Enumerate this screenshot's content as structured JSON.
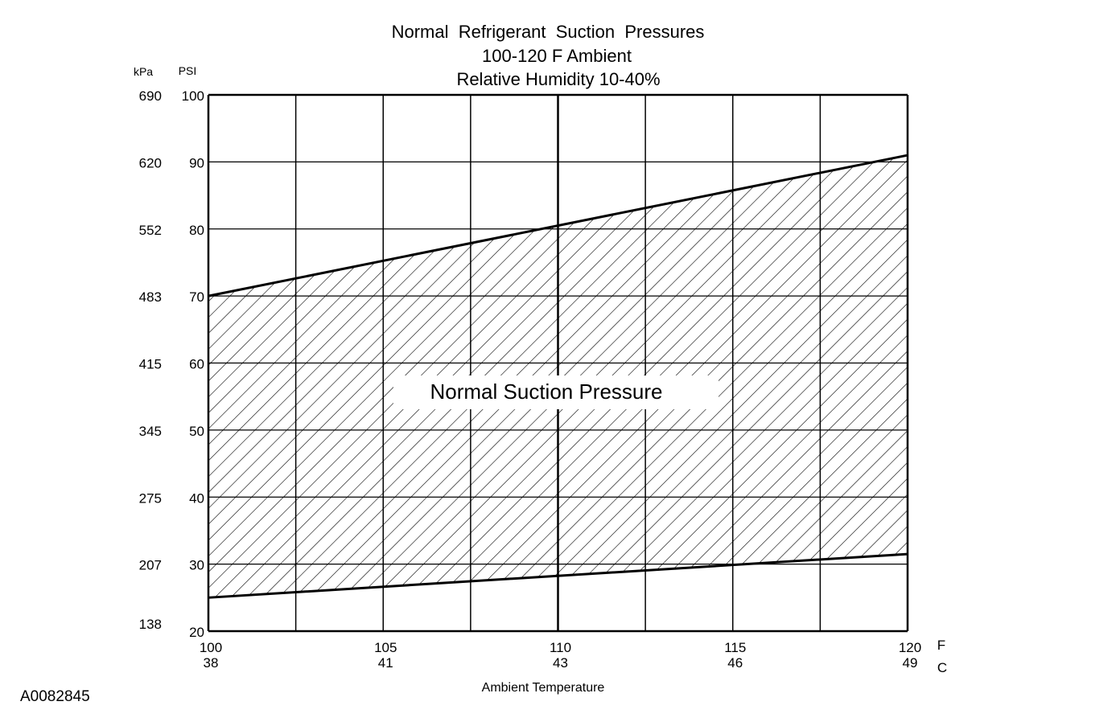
{
  "chart_data": {
    "type": "area",
    "title": [
      "Normal  Refrigerant  Suction  Pressures",
      "100-120 F Ambient",
      "Relative Humidity 10-40%"
    ],
    "region_label": "Normal Suction Pressure",
    "x_axis": {
      "label": "Ambient Temperature",
      "unit_primary": "F",
      "unit_secondary": "C",
      "range": [
        100,
        120
      ],
      "grid_step": 2.5,
      "major_grid": [
        110
      ],
      "ticks_primary": [
        {
          "value": 100,
          "label": "100"
        },
        {
          "value": 105,
          "label": "105"
        },
        {
          "value": 110,
          "label": "110"
        },
        {
          "value": 115,
          "label": "115"
        },
        {
          "value": 120,
          "label": "120"
        }
      ],
      "ticks_secondary": [
        {
          "value": 100,
          "label": "38"
        },
        {
          "value": 105,
          "label": "41"
        },
        {
          "value": 110,
          "label": "43"
        },
        {
          "value": 115,
          "label": "46"
        },
        {
          "value": 120,
          "label": "49"
        }
      ]
    },
    "y_axis": {
      "unit_primary": "PSI",
      "unit_secondary": "kPa",
      "range": [
        20,
        100
      ],
      "ticks_primary": [
        {
          "value": 100,
          "label": "100"
        },
        {
          "value": 90,
          "label": "90"
        },
        {
          "value": 80,
          "label": "80"
        },
        {
          "value": 70,
          "label": "70"
        },
        {
          "value": 60,
          "label": "60"
        },
        {
          "value": 50,
          "label": "50"
        },
        {
          "value": 40,
          "label": "40"
        },
        {
          "value": 30,
          "label": "30"
        },
        {
          "value": 20,
          "label": "20"
        }
      ],
      "ticks_secondary": [
        {
          "value": 100,
          "label": "690"
        },
        {
          "value": 90,
          "label": "620"
        },
        {
          "value": 80,
          "label": "552"
        },
        {
          "value": 70,
          "label": "483"
        },
        {
          "value": 60,
          "label": "415"
        },
        {
          "value": 50,
          "label": "345"
        },
        {
          "value": 40,
          "label": "275"
        },
        {
          "value": 30,
          "label": "207"
        },
        {
          "value": 20,
          "label": "138"
        }
      ]
    },
    "upper_boundary": [
      {
        "x": 100,
        "y": 70
      },
      {
        "x": 120,
        "y": 91
      }
    ],
    "lower_boundary": [
      {
        "x": 100,
        "y": 25
      },
      {
        "x": 120,
        "y": 31.5
      }
    ],
    "grid": true
  },
  "figure_id": "A0082845"
}
